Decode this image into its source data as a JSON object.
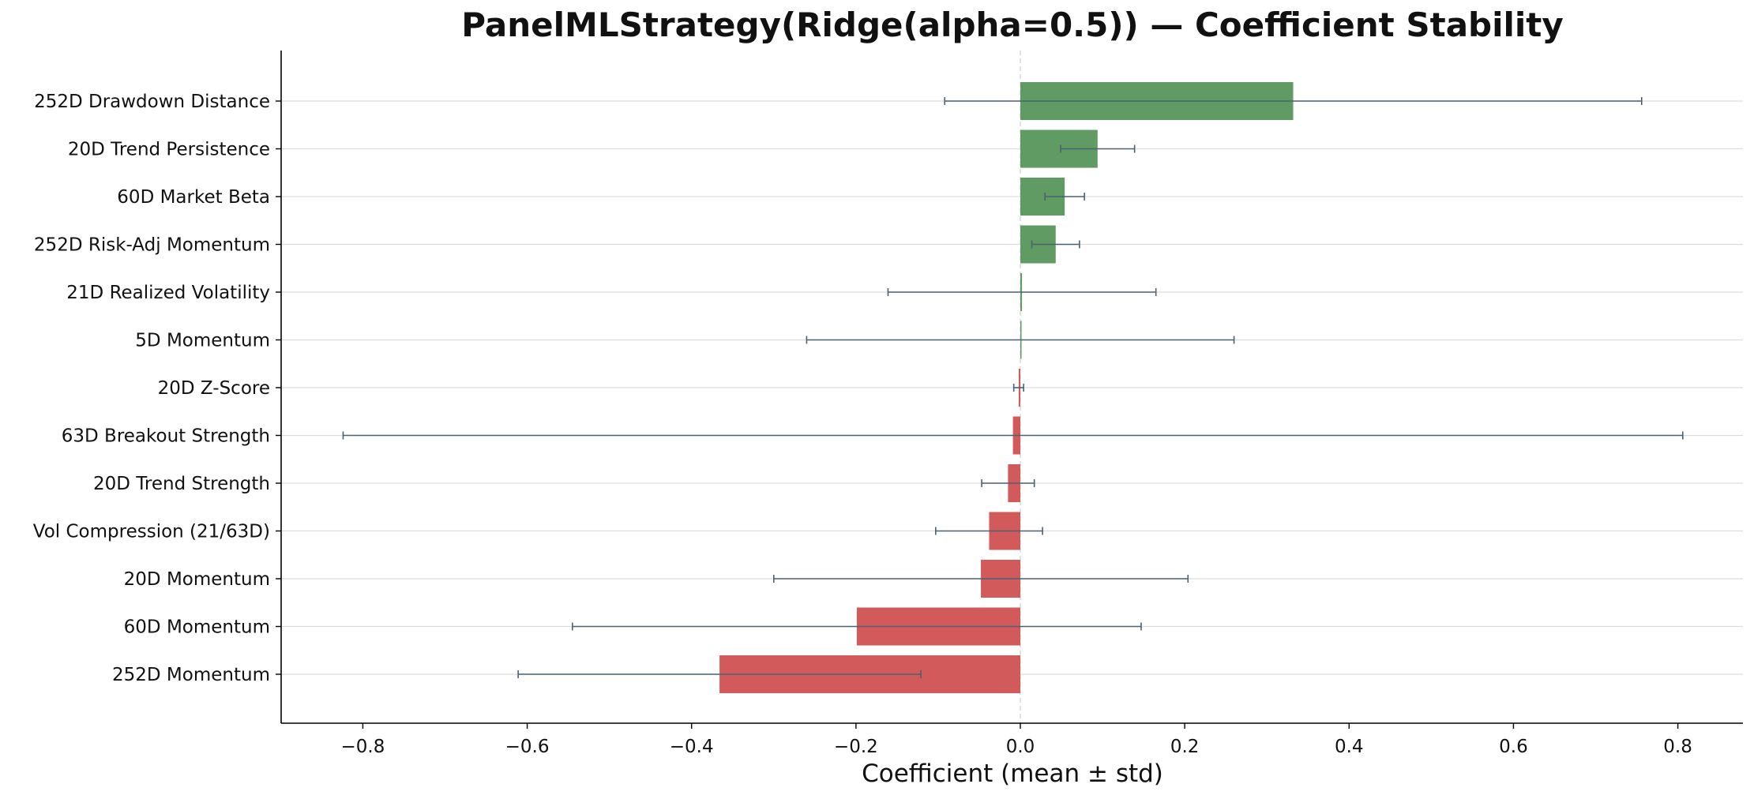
{
  "chart_data": {
    "type": "bar",
    "orientation": "horizontal",
    "title": "PanelMLStrategy(Ridge(alpha=0.5)) — Coefficient Stability",
    "xlabel": "Coefficient (mean ± std)",
    "ylabel": "",
    "xlim": [
      -0.9,
      0.89
    ],
    "xticks": [
      -0.8,
      -0.6,
      -0.4,
      -0.2,
      0.0,
      0.2,
      0.4,
      0.6,
      0.8
    ],
    "xtick_labels": [
      "−0.8",
      "−0.6",
      "−0.4",
      "−0.2",
      "0.0",
      "0.2",
      "0.4",
      "0.6",
      "0.8"
    ],
    "grid": "horizontal",
    "legend": "none",
    "colors": {
      "positive": "#5f9b62",
      "negative": "#d25a5a",
      "errorbar": "#4a6274",
      "zero_line": "#d9d9d9",
      "grid": "#dddddd"
    },
    "categories": [
      "252D Drawdown Distance",
      "20D Trend Persistence",
      "60D Market Beta",
      "252D Risk-Adj Momentum",
      "21D Realized Volatility",
      "5D Momentum",
      "20D Z-Score",
      "63D Breakout Strength",
      "20D Trend Strength",
      "Vol Compression (21/63D)",
      "20D Momentum",
      "60D Momentum",
      "252D Momentum"
    ],
    "values": [
      0.332,
      0.094,
      0.054,
      0.043,
      0.002,
      0.0,
      -0.002,
      -0.009,
      -0.015,
      -0.038,
      -0.048,
      -0.199,
      -0.366
    ],
    "errors": [
      0.424,
      0.045,
      0.024,
      0.029,
      0.163,
      0.26,
      0.006,
      0.815,
      0.032,
      0.065,
      0.252,
      0.346,
      0.245
    ]
  }
}
